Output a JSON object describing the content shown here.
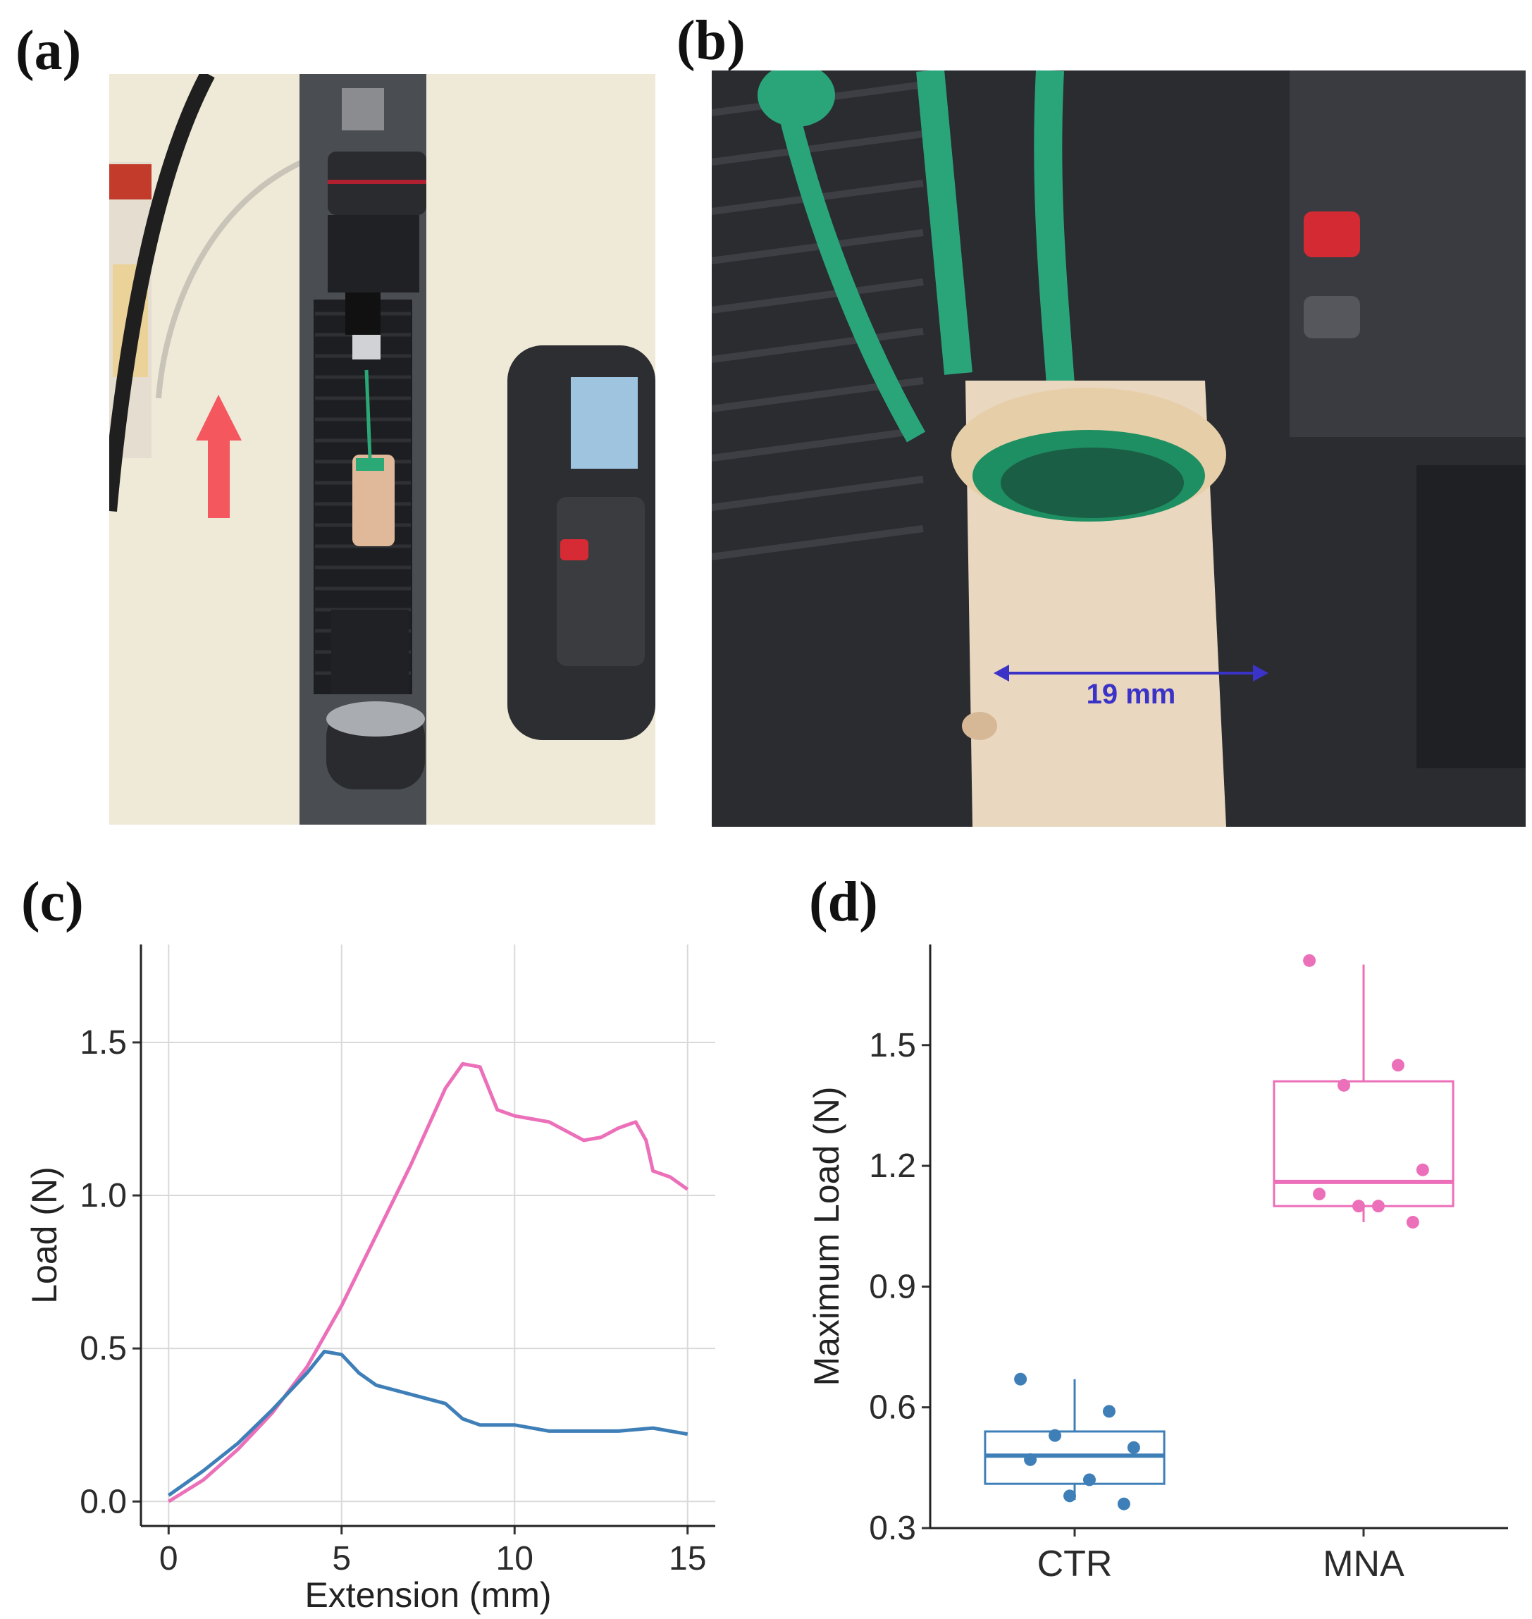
{
  "figure": {
    "panels": [
      {
        "letter": "(a)"
      },
      {
        "letter": "(b)"
      },
      {
        "letter": "(c)"
      },
      {
        "letter": "(d)"
      }
    ],
    "photo_b": {
      "dimension_label": "19 mm"
    },
    "colors": {
      "ctr": "#3f7fb8",
      "mna": "#ec6fb9",
      "arrow": "#f4585e",
      "dimension": "#3b33c8"
    }
  },
  "chart_data": [
    {
      "type": "line",
      "panel": "(c)",
      "xlabel": "Extension (mm)",
      "ylabel": "Load (N)",
      "xlim": [
        -0.8,
        15.8
      ],
      "ylim": [
        -0.08,
        1.82
      ],
      "xticks": [
        "0",
        "5",
        "10",
        "15"
      ],
      "xtick_values": [
        0,
        5,
        10,
        15
      ],
      "yticks": [
        "0.0",
        "0.5",
        "1.0",
        "1.5"
      ],
      "ytick_values": [
        0,
        0.5,
        1.0,
        1.5
      ],
      "grid": true,
      "series": [
        {
          "color": "#ec6fb9",
          "x": [
            0,
            1,
            2,
            3,
            4,
            5,
            6,
            7,
            8,
            8.5,
            9,
            9.5,
            10,
            11,
            12,
            12.5,
            13,
            13.5,
            13.8,
            14,
            14.5,
            15
          ],
          "y": [
            0.0,
            0.07,
            0.17,
            0.29,
            0.44,
            0.64,
            0.87,
            1.1,
            1.35,
            1.43,
            1.42,
            1.28,
            1.26,
            1.24,
            1.18,
            1.19,
            1.22,
            1.24,
            1.18,
            1.08,
            1.06,
            1.02
          ]
        },
        {
          "color": "#3f7fb8",
          "x": [
            0,
            1,
            2,
            3,
            4,
            4.5,
            5,
            5.5,
            6,
            7,
            8,
            8.5,
            9,
            10,
            11,
            12,
            13,
            14,
            15
          ],
          "y": [
            0.02,
            0.1,
            0.19,
            0.3,
            0.42,
            0.49,
            0.48,
            0.42,
            0.38,
            0.35,
            0.32,
            0.27,
            0.25,
            0.25,
            0.23,
            0.23,
            0.23,
            0.24,
            0.22
          ]
        }
      ]
    },
    {
      "type": "box",
      "panel": "(d)",
      "ylabel": "Maximum Load (N)",
      "ylim": [
        0.3,
        1.75
      ],
      "yticks": [
        "0.3",
        "0.6",
        "0.9",
        "1.2",
        "1.5"
      ],
      "ytick_values": [
        0.3,
        0.6,
        0.9,
        1.2,
        1.5
      ],
      "categories": [
        "CTR",
        "MNA"
      ],
      "groups": [
        {
          "category": "CTR",
          "color": "#3f7fb8",
          "min": 0.37,
          "q1": 0.41,
          "median": 0.48,
          "q3": 0.54,
          "max": 0.67,
          "points": [
            0.67,
            0.59,
            0.53,
            0.5,
            0.47,
            0.42,
            0.38,
            0.36
          ]
        },
        {
          "category": "MNA",
          "color": "#ec6fb9",
          "min": 1.06,
          "q1": 1.1,
          "median": 1.16,
          "q3": 1.41,
          "max": 1.7,
          "points": [
            1.71,
            1.45,
            1.4,
            1.19,
            1.13,
            1.1,
            1.1,
            1.06
          ]
        }
      ]
    }
  ]
}
